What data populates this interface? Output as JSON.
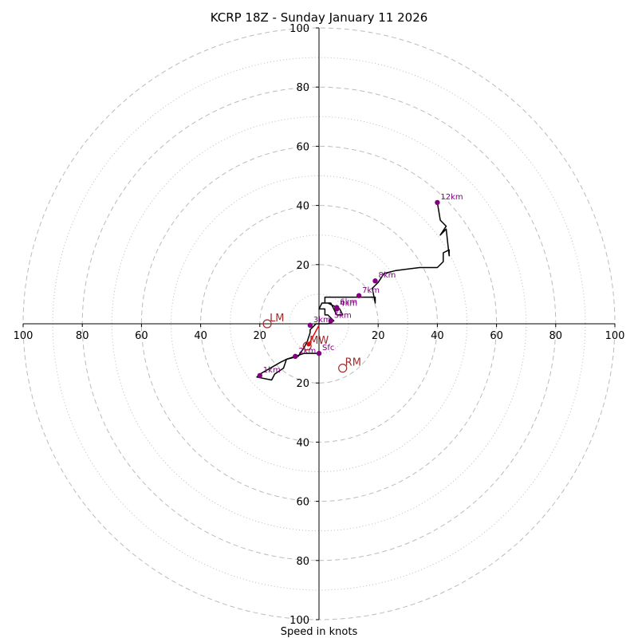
{
  "chart_data": {
    "type": "scatter",
    "subtype": "hodograph",
    "title": "KCRP 18Z - Sunday January 11 2026",
    "xlabel": "Speed in knots",
    "ylabel": "",
    "xlim": [
      -100,
      100
    ],
    "ylim": [
      -100,
      100
    ],
    "ring_major": [
      20,
      40,
      60,
      80,
      100
    ],
    "ring_minor": [
      10,
      30,
      50,
      70,
      90
    ],
    "x_ticks": [
      {
        "value": -100,
        "label": "100"
      },
      {
        "value": -80,
        "label": "80"
      },
      {
        "value": -60,
        "label": "60"
      },
      {
        "value": -40,
        "label": "40"
      },
      {
        "value": -20,
        "label": "20"
      },
      {
        "value": 20,
        "label": "20"
      },
      {
        "value": 40,
        "label": "40"
      },
      {
        "value": 60,
        "label": "60"
      },
      {
        "value": 80,
        "label": "80"
      },
      {
        "value": 100,
        "label": "100"
      }
    ],
    "y_ticks": [
      {
        "value": 100,
        "label": "100"
      },
      {
        "value": 80,
        "label": "80"
      },
      {
        "value": 60,
        "label": "60"
      },
      {
        "value": 40,
        "label": "40"
      },
      {
        "value": 20,
        "label": "20"
      },
      {
        "value": -20,
        "label": "20"
      },
      {
        "value": -40,
        "label": "40"
      },
      {
        "value": -60,
        "label": "60"
      },
      {
        "value": -80,
        "label": "80"
      },
      {
        "value": -100,
        "label": "100"
      }
    ],
    "profile": {
      "name": "wind profile",
      "color": "#000000",
      "u": [
        0,
        -5,
        -8,
        -11,
        -13,
        -20,
        -21,
        -16,
        -15,
        -12,
        -11,
        -7,
        -7,
        -5,
        -4,
        -3,
        -3,
        -2,
        -1,
        2,
        3,
        5,
        4,
        3,
        3,
        2,
        2,
        0,
        1,
        3,
        5,
        7,
        8,
        6,
        4,
        2,
        2,
        5,
        6,
        8,
        10,
        14,
        19,
        19,
        18,
        20,
        22,
        26,
        34,
        40,
        42,
        42,
        44,
        44,
        43,
        41,
        43,
        41,
        40
      ],
      "v": [
        -10,
        -10,
        -11,
        -12,
        -13,
        -17,
        -18,
        -19,
        -17,
        -15,
        -12,
        -11,
        -11,
        -8,
        -6,
        -3,
        -2,
        -1,
        0,
        0,
        0,
        1,
        2,
        3,
        3,
        3,
        5,
        5,
        7,
        7,
        6,
        5,
        3,
        3,
        7,
        7,
        9,
        9,
        9,
        9,
        9,
        9,
        9,
        7,
        12,
        14,
        17,
        18,
        19,
        19,
        21,
        24,
        25,
        23,
        32,
        30,
        33,
        35,
        41
      ]
    },
    "height_markers": [
      {
        "label": "Sfc",
        "u": 0,
        "v": -10
      },
      {
        "label": "1km",
        "u": -20,
        "v": -17.5
      },
      {
        "label": "2km",
        "u": -8,
        "v": -11
      },
      {
        "label": "3km",
        "u": -3,
        "v": -0.5
      },
      {
        "label": "4km",
        "u": 6,
        "v": 5
      },
      {
        "label": "5km",
        "u": 4,
        "v": 1
      },
      {
        "label": "6km",
        "u": 6,
        "v": 5.5
      },
      {
        "label": "7km",
        "u": 13.5,
        "v": 9.5
      },
      {
        "label": "8km",
        "u": 19,
        "v": 14.5
      },
      {
        "label": "12km",
        "u": 40,
        "v": 41
      }
    ],
    "storm_motion": [
      {
        "label": "LM",
        "u": -17.5,
        "v": 0
      },
      {
        "label": "RM",
        "u": 8,
        "v": -15
      },
      {
        "label": "MW",
        "u": -4,
        "v": -7.5
      }
    ],
    "shear_vector": {
      "color": "#ff0000",
      "from": {
        "u": -3.5,
        "v": -7
      },
      "to": {
        "u": 0,
        "v": -0.5
      }
    },
    "colors": {
      "profile": "#000000",
      "markers": "#800080",
      "motion": "#a52a2a",
      "shear": "#ff0000",
      "ring": "#bbbbbb"
    }
  }
}
